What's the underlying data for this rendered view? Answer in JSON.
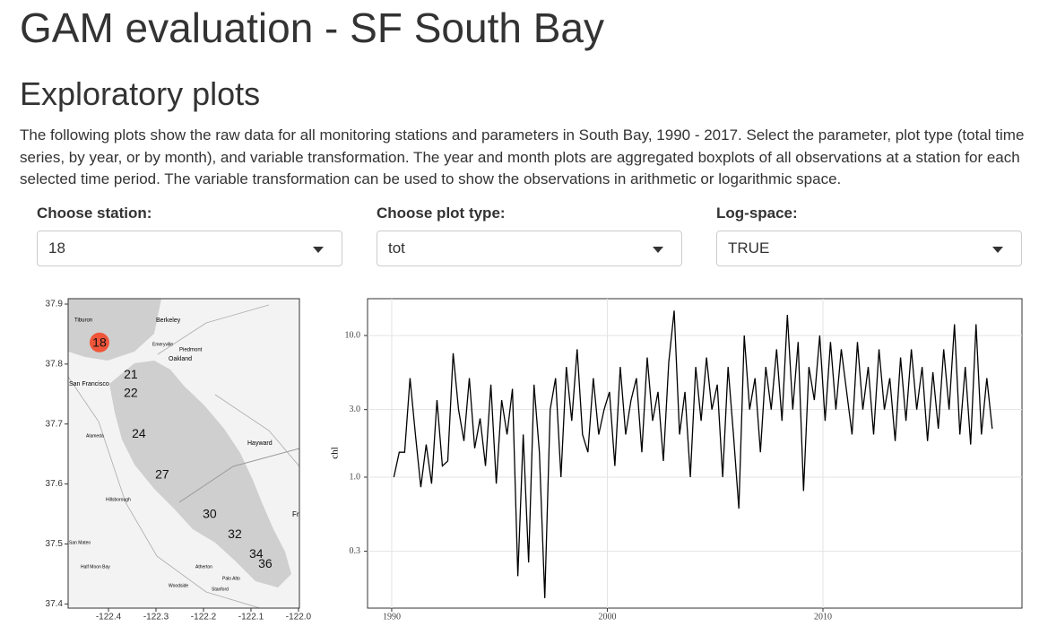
{
  "header": {
    "title": "GAM evaluation - SF South Bay"
  },
  "section": {
    "title": "Exploratory plots",
    "paragraph": "The following plots show the raw data for all monitoring stations and parameters in South Bay, 1990 - 2017. Select the parameter, plot type (total time series, by year, or by month), and variable transformation. The year and month plots are aggregated boxplots of all observations at a station for each selected time period. The variable transformation can be used to show the observations in arithmetic or logarithmic space."
  },
  "controls": [
    {
      "label": "Choose station:",
      "value": "18"
    },
    {
      "label": "Choose plot type:",
      "value": "tot"
    },
    {
      "label": "Log-space:",
      "value": "TRUE"
    }
  ],
  "chart_data": [
    {
      "type": "map",
      "labels": [
        "18",
        "21",
        "22",
        "24",
        "27",
        "30",
        "32",
        "34",
        "36"
      ],
      "lon": [
        -122.419,
        -122.353,
        -122.353,
        -122.336,
        -122.287,
        -122.187,
        -122.134,
        -122.089,
        -122.07
      ],
      "lat": [
        37.836,
        37.783,
        37.752,
        37.684,
        37.616,
        37.55,
        37.517,
        37.484,
        37.467
      ],
      "highlight_color": "#f0553a",
      "places": [
        "Tiburon",
        "Berkeley",
        "Emeryville",
        "Piedmont",
        "Oakland",
        "San Francisco",
        "Alameda",
        "Hayward",
        "Hillsborough",
        "San Mateo",
        "Half Moon Bay",
        "Woodside",
        "Palo Alto",
        "Stanford",
        "Atherton",
        "Fre"
      ],
      "xlim": [
        -122.485,
        -121.998
      ],
      "ylim": [
        37.393,
        37.909
      ],
      "xticks": [
        -122.4,
        -122.3,
        -122.2,
        -122.1,
        {
          "value": -122,
          "label": "-122.0"
        }
      ],
      "yticks": [
        37.9,
        37.8,
        37.7,
        37.6,
        37.5,
        37.4
      ]
    },
    {
      "type": "line",
      "ylabel": "chl",
      "color": "#000000",
      "yscale": "log",
      "grid": true,
      "x": [
        1990.1,
        1990.35,
        1990.6,
        1990.85,
        1991.1,
        1991.35,
        1991.6,
        1991.85,
        1992.1,
        1992.35,
        1992.6,
        1992.85,
        1993.1,
        1993.35,
        1993.6,
        1993.85,
        1994.1,
        1994.35,
        1994.6,
        1994.85,
        1995.1,
        1995.35,
        1995.6,
        1995.85,
        1996.1,
        1996.35,
        1996.6,
        1996.85,
        1997.1,
        1997.35,
        1997.6,
        1997.85,
        1998.1,
        1998.35,
        1998.6,
        1998.85,
        1999.1,
        1999.35,
        1999.6,
        1999.85,
        2000.1,
        2000.35,
        2000.6,
        2000.85,
        2001.1,
        2001.35,
        2001.6,
        2001.85,
        2002.1,
        2002.35,
        2002.6,
        2002.85,
        2003.1,
        2003.35,
        2003.6,
        2003.85,
        2004.1,
        2004.35,
        2004.6,
        2004.85,
        2005.1,
        2005.35,
        2005.6,
        2005.85,
        2006.1,
        2006.35,
        2006.6,
        2006.85,
        2007.1,
        2007.35,
        2007.6,
        2007.85,
        2008.1,
        2008.35,
        2008.6,
        2008.85,
        2009.1,
        2009.35,
        2009.6,
        2009.85,
        2010.1,
        2010.35,
        2010.6,
        2010.85,
        2011.1,
        2011.35,
        2011.6,
        2011.85,
        2012.1,
        2012.35,
        2012.6,
        2012.85,
        2013.1,
        2013.35,
        2013.6,
        2013.85,
        2014.1,
        2014.35,
        2014.6,
        2014.85,
        2015.1,
        2015.35,
        2015.6,
        2015.85,
        2016.1,
        2016.35,
        2016.6,
        2016.85,
        2017.1,
        2017.35,
        2017.6,
        2017.85
      ],
      "values": [
        1.0,
        1.5,
        1.5,
        5.0,
        2.0,
        0.85,
        1.7,
        0.9,
        3.5,
        1.2,
        1.3,
        7.5,
        3.0,
        1.8,
        5.0,
        1.6,
        2.6,
        1.2,
        4.5,
        0.9,
        3.5,
        2.0,
        4.2,
        0.2,
        2.0,
        0.25,
        4.5,
        1.5,
        0.14,
        3.0,
        5.0,
        1.0,
        6.0,
        2.5,
        8.0,
        2.0,
        1.5,
        5.0,
        2.0,
        3.0,
        4.0,
        1.2,
        6.0,
        2.0,
        3.5,
        5.0,
        1.5,
        7.0,
        2.5,
        4.0,
        1.3,
        6.5,
        15.0,
        2.0,
        4.0,
        1.0,
        6.0,
        2.5,
        7.0,
        3.0,
        4.5,
        1.0,
        6.0,
        2.0,
        0.6,
        10.0,
        3.0,
        5.0,
        1.5,
        6.0,
        3.0,
        8.0,
        2.5,
        14.0,
        3.0,
        9.0,
        0.8,
        6.0,
        3.5,
        10.0,
        2.5,
        9.0,
        3.0,
        8.0,
        4.0,
        2.0,
        9.0,
        3.0,
        6.0,
        2.0,
        8.0,
        3.0,
        5.0,
        1.8,
        7.0,
        2.5,
        8.0,
        3.0,
        6.0,
        1.8,
        5.5,
        2.2,
        8.0,
        3.0,
        12.0,
        2.0,
        6.0,
        1.7,
        12.0,
        2.0,
        5.0,
        2.2
      ],
      "xlim": [
        1988.88,
        2019.23
      ],
      "ylim": [
        0.119,
        18.2
      ],
      "xticks": [
        1990,
        2000,
        2010
      ],
      "yticks": [
        {
          "value": 10,
          "label": "10.0"
        },
        {
          "value": 3,
          "label": "3.0"
        },
        {
          "value": 1,
          "label": "1.0"
        },
        0.3
      ]
    }
  ]
}
